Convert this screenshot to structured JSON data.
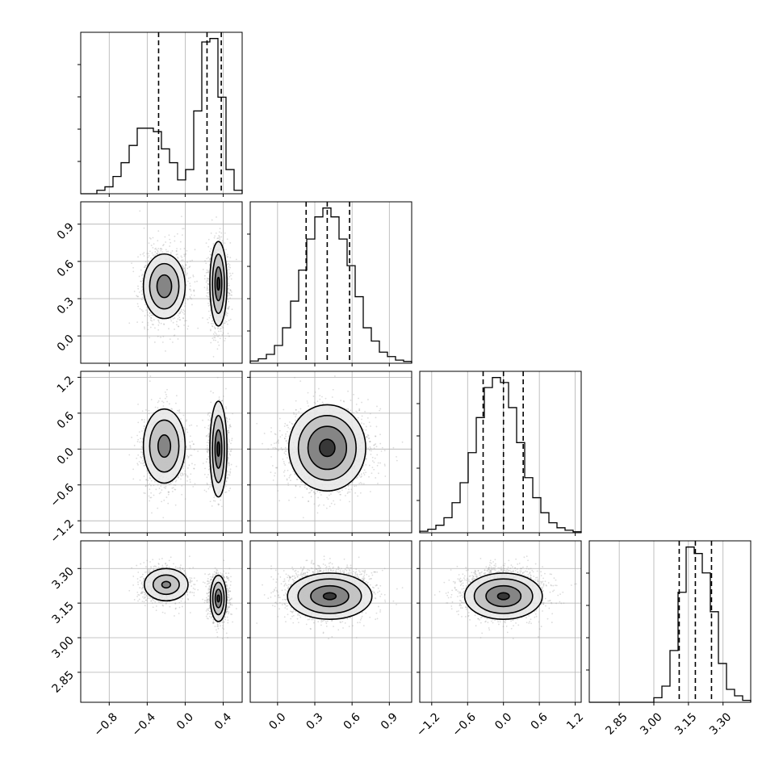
{
  "chart_data": {
    "type": "corner",
    "grid": true,
    "variables": [
      {
        "range": [
          -1.1,
          0.6
        ],
        "ticks": [
          -0.8,
          -0.4,
          0.0,
          0.4
        ],
        "tick_labels": [
          "−0.8",
          "−0.4",
          "0.0",
          "0.4"
        ],
        "quantiles": [
          -0.28,
          0.23,
          0.38
        ],
        "hist": [
          0,
          0,
          1,
          2,
          5,
          9,
          14,
          19,
          19,
          18,
          13,
          9,
          4,
          7,
          24,
          44,
          45,
          28,
          7,
          1
        ]
      },
      {
        "range": [
          -0.22,
          1.08
        ],
        "ticks": [
          0.0,
          0.3,
          0.6,
          0.9
        ],
        "tick_labels": [
          "0.0",
          "0.3",
          "0.6",
          "0.9"
        ],
        "quantiles": [
          0.23,
          0.4,
          0.58
        ],
        "hist": [
          0.5,
          1,
          2,
          4,
          8,
          14,
          21,
          28,
          33,
          35,
          33,
          28,
          22,
          15,
          8,
          5,
          2.5,
          1.5,
          0.7,
          0.4
        ]
      },
      {
        "range": [
          -1.4,
          1.3
        ],
        "ticks": [
          -1.2,
          -0.6,
          0.0,
          0.6,
          1.2
        ],
        "tick_labels": [
          "−1.2",
          "−0.6",
          "0.0",
          "0.6",
          "1.2"
        ],
        "quantiles": [
          -0.34,
          0.0,
          0.33
        ],
        "hist": [
          0.3,
          0.7,
          1.5,
          3,
          6,
          10,
          16,
          23,
          29,
          31,
          30,
          25,
          18,
          11,
          7,
          4,
          2,
          1,
          0.5,
          0.2
        ]
      },
      {
        "range": [
          2.72,
          3.42
        ],
        "ticks": [
          2.85,
          3.0,
          3.15,
          3.3
        ],
        "tick_labels": [
          "2.85",
          "3.00",
          "3.15",
          "3.30"
        ],
        "quantiles": [
          3.11,
          3.18,
          3.25
        ],
        "hist": [
          0,
          0,
          0,
          0,
          0,
          0,
          0,
          0,
          0.7,
          2.5,
          8,
          17,
          24,
          23,
          20,
          14,
          6,
          2,
          1,
          0.3
        ]
      }
    ]
  }
}
